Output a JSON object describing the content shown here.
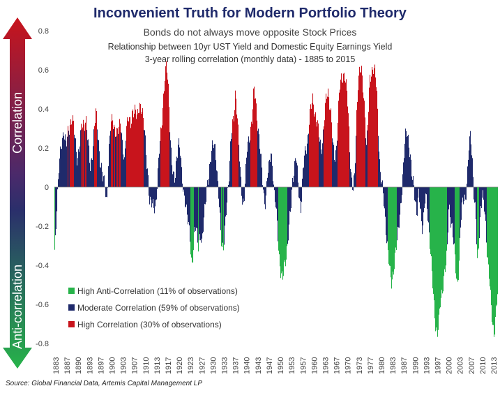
{
  "chart_data": {
    "type": "bar",
    "title": "Inconvenient Truth for Modern Portfolio Theory",
    "subtitle": "Bonds do not always move opposite Stock Prices",
    "description_line1": "Relationship between 10yr UST Yield and Domestic Equity Earnings Yield",
    "description_line2": "3-year rolling correlation (monthly data) - 1885 to 2015",
    "ylim": [
      -0.8,
      0.8
    ],
    "y_ticks": [
      "0.8",
      "0.6",
      "0.4",
      "0.2",
      "0",
      "-0.2",
      "-0.4",
      "-0.6",
      "-0.8"
    ],
    "y_tick_values": [
      0.8,
      0.6,
      0.4,
      0.2,
      0,
      -0.2,
      -0.4,
      -0.6,
      -0.8
    ],
    "x_ticks": [
      "1883",
      "1887",
      "1890",
      "1893",
      "1897",
      "1900",
      "1903",
      "1907",
      "1910",
      "1913",
      "1917",
      "1920",
      "1923",
      "1927",
      "1930",
      "1933",
      "1937",
      "1940",
      "1943",
      "1947",
      "1950",
      "1953",
      "1957",
      "1960",
      "1963",
      "1967",
      "1970",
      "1973",
      "1977",
      "1980",
      "1983",
      "1987",
      "1990",
      "1993",
      "1997",
      "2000",
      "2003",
      "2007",
      "2010",
      "2013"
    ],
    "xlim": [
      1883,
      2015
    ],
    "legend": [
      {
        "label": "High Anti-Correlation (11% of observations)",
        "color": "#27b34a"
      },
      {
        "label": "Moderate Correlation (59% of observations)",
        "color": "#1f2a6b"
      },
      {
        "label": "High Correlation (30% of observations)",
        "color": "#c8141c"
      }
    ],
    "legend_position": "bottom-left",
    "arrow_labels": {
      "up": "Correlation",
      "down": "Anti-correlation"
    },
    "colors": {
      "high_anti": "#27b34a",
      "moderate": "#1f2a6b",
      "high": "#c8141c"
    },
    "series_points": [
      [
        1883.0,
        -0.33
      ],
      [
        1883.6,
        -0.1
      ],
      [
        1884.3,
        0.1
      ],
      [
        1885.0,
        0.22
      ],
      [
        1885.7,
        0.3
      ],
      [
        1886.4,
        0.2
      ],
      [
        1887.0,
        0.28
      ],
      [
        1887.6,
        0.33
      ],
      [
        1888.2,
        0.36
      ],
      [
        1889.0,
        0.25
      ],
      [
        1889.7,
        0.15
      ],
      [
        1890.3,
        0.2
      ],
      [
        1891.0,
        0.3
      ],
      [
        1891.7,
        0.33
      ],
      [
        1892.3,
        0.35
      ],
      [
        1893.0,
        0.2
      ],
      [
        1893.6,
        0.1
      ],
      [
        1894.3,
        0.2
      ],
      [
        1894.8,
        0.3
      ],
      [
        1895.3,
        0.38
      ],
      [
        1896.0,
        0.25
      ],
      [
        1896.6,
        0.12
      ],
      [
        1897.3,
        0.04
      ],
      [
        1898.0,
        0.02
      ],
      [
        1898.5,
        -0.08
      ],
      [
        1899.0,
        0.12
      ],
      [
        1899.6,
        0.3
      ],
      [
        1900.2,
        0.37
      ],
      [
        1900.8,
        0.3
      ],
      [
        1901.4,
        0.25
      ],
      [
        1902.0,
        0.3
      ],
      [
        1902.6,
        0.36
      ],
      [
        1903.2,
        0.2
      ],
      [
        1903.8,
        0.1
      ],
      [
        1904.3,
        0.32
      ],
      [
        1905.0,
        0.38
      ],
      [
        1905.6,
        0.3
      ],
      [
        1906.3,
        0.38
      ],
      [
        1907.0,
        0.42
      ],
      [
        1907.6,
        0.35
      ],
      [
        1908.3,
        0.4
      ],
      [
        1909.0,
        0.42
      ],
      [
        1909.7,
        0.3
      ],
      [
        1910.3,
        0.12
      ],
      [
        1910.8,
        0.05
      ],
      [
        1911.2,
        -0.05
      ],
      [
        1911.8,
        -0.08
      ],
      [
        1912.4,
        -0.12
      ],
      [
        1913.0,
        -0.1
      ],
      [
        1913.6,
        0.05
      ],
      [
        1914.2,
        0.2
      ],
      [
        1914.8,
        0.3
      ],
      [
        1915.3,
        0.45
      ],
      [
        1915.8,
        0.58
      ],
      [
        1916.3,
        0.62
      ],
      [
        1916.8,
        0.5
      ],
      [
        1917.3,
        0.3
      ],
      [
        1917.8,
        0.15
      ],
      [
        1918.3,
        0.05
      ],
      [
        1918.8,
        0.02
      ],
      [
        1919.3,
        0.15
      ],
      [
        1919.8,
        0.25
      ],
      [
        1920.3,
        0.2
      ],
      [
        1920.8,
        0.05
      ],
      [
        1921.3,
        -0.03
      ],
      [
        1921.8,
        -0.05
      ],
      [
        1922.3,
        -0.12
      ],
      [
        1922.8,
        -0.2
      ],
      [
        1923.3,
        -0.28
      ],
      [
        1923.8,
        -0.4
      ],
      [
        1924.3,
        -0.3
      ],
      [
        1924.8,
        -0.2
      ],
      [
        1925.3,
        -0.25
      ],
      [
        1925.8,
        -0.3
      ],
      [
        1926.3,
        -0.22
      ],
      [
        1926.8,
        -0.3
      ],
      [
        1927.3,
        -0.2
      ],
      [
        1927.8,
        -0.08
      ],
      [
        1928.3,
        0.02
      ],
      [
        1928.8,
        0.05
      ],
      [
        1929.3,
        0.1
      ],
      [
        1929.8,
        0.2
      ],
      [
        1930.3,
        0.25
      ],
      [
        1930.8,
        0.2
      ],
      [
        1931.3,
        0.05
      ],
      [
        1931.8,
        -0.05
      ],
      [
        1932.3,
        -0.18
      ],
      [
        1932.8,
        -0.3
      ],
      [
        1933.3,
        -0.32
      ],
      [
        1933.8,
        -0.2
      ],
      [
        1934.3,
        -0.05
      ],
      [
        1934.8,
        0.05
      ],
      [
        1935.3,
        0.2
      ],
      [
        1935.8,
        0.3
      ],
      [
        1936.3,
        0.35
      ],
      [
        1936.8,
        0.5
      ],
      [
        1937.3,
        0.38
      ],
      [
        1937.8,
        0.2
      ],
      [
        1938.3,
        0.05
      ],
      [
        1938.8,
        -0.05
      ],
      [
        1939.3,
        -0.08
      ],
      [
        1939.8,
        0.05
      ],
      [
        1940.3,
        0.2
      ],
      [
        1940.8,
        0.25
      ],
      [
        1941.3,
        0.3
      ],
      [
        1941.8,
        0.35
      ],
      [
        1942.3,
        0.5
      ],
      [
        1942.8,
        0.45
      ],
      [
        1943.3,
        0.35
      ],
      [
        1943.8,
        0.25
      ],
      [
        1944.3,
        0.15
      ],
      [
        1944.8,
        0.05
      ],
      [
        1945.3,
        -0.05
      ],
      [
        1945.8,
        -0.08
      ],
      [
        1946.3,
        0.05
      ],
      [
        1946.8,
        0.1
      ],
      [
        1947.3,
        0.2
      ],
      [
        1947.8,
        0.12
      ],
      [
        1948.3,
        -0.05
      ],
      [
        1948.8,
        -0.1
      ],
      [
        1949.3,
        -0.2
      ],
      [
        1949.8,
        -0.35
      ],
      [
        1950.3,
        -0.45
      ],
      [
        1950.8,
        -0.49
      ],
      [
        1951.3,
        -0.4
      ],
      [
        1951.8,
        -0.35
      ],
      [
        1952.3,
        -0.3
      ],
      [
        1952.8,
        -0.2
      ],
      [
        1953.3,
        -0.1
      ],
      [
        1953.8,
        0.05
      ],
      [
        1954.3,
        0.1
      ],
      [
        1954.8,
        0.15
      ],
      [
        1955.3,
        0.05
      ],
      [
        1955.8,
        -0.05
      ],
      [
        1956.3,
        -0.1
      ],
      [
        1956.8,
        0.05
      ],
      [
        1957.3,
        0.15
      ],
      [
        1957.8,
        0.2
      ],
      [
        1958.3,
        0.25
      ],
      [
        1958.8,
        0.35
      ],
      [
        1959.3,
        0.4
      ],
      [
        1959.8,
        0.45
      ],
      [
        1960.3,
        0.4
      ],
      [
        1960.8,
        0.35
      ],
      [
        1961.3,
        0.3
      ],
      [
        1961.8,
        0.25
      ],
      [
        1962.3,
        0.2
      ],
      [
        1962.8,
        0.25
      ],
      [
        1963.3,
        0.35
      ],
      [
        1963.8,
        0.45
      ],
      [
        1964.3,
        0.5
      ],
      [
        1964.8,
        0.44
      ],
      [
        1965.3,
        0.35
      ],
      [
        1965.8,
        0.2
      ],
      [
        1966.3,
        0.15
      ],
      [
        1966.8,
        0.2
      ],
      [
        1967.3,
        0.35
      ],
      [
        1967.8,
        0.5
      ],
      [
        1968.3,
        0.55
      ],
      [
        1968.8,
        0.58
      ],
      [
        1969.3,
        0.58
      ],
      [
        1969.8,
        0.5
      ],
      [
        1970.3,
        0.4
      ],
      [
        1970.8,
        0.2
      ],
      [
        1971.3,
        0.05
      ],
      [
        1971.8,
        -0.02
      ],
      [
        1972.3,
        0.05
      ],
      [
        1972.8,
        0.35
      ],
      [
        1973.3,
        0.55
      ],
      [
        1973.8,
        0.6
      ],
      [
        1974.3,
        0.58
      ],
      [
        1974.8,
        0.5
      ],
      [
        1975.3,
        0.4
      ],
      [
        1975.8,
        0.2
      ],
      [
        1976.3,
        0.35
      ],
      [
        1976.8,
        0.55
      ],
      [
        1977.3,
        0.6
      ],
      [
        1977.8,
        0.62
      ],
      [
        1978.3,
        0.58
      ],
      [
        1978.8,
        0.5
      ],
      [
        1979.3,
        0.3
      ],
      [
        1979.8,
        0.1
      ],
      [
        1980.3,
        0.02
      ],
      [
        1980.8,
        -0.05
      ],
      [
        1981.3,
        -0.15
      ],
      [
        1981.8,
        -0.25
      ],
      [
        1982.3,
        -0.35
      ],
      [
        1982.8,
        -0.45
      ],
      [
        1983.3,
        -0.5
      ],
      [
        1983.8,
        -0.42
      ],
      [
        1984.3,
        -0.35
      ],
      [
        1984.8,
        -0.3
      ],
      [
        1985.3,
        -0.22
      ],
      [
        1985.8,
        -0.12
      ],
      [
        1986.3,
        -0.02
      ],
      [
        1986.8,
        0.1
      ],
      [
        1987.3,
        0.25
      ],
      [
        1987.8,
        0.3
      ],
      [
        1988.3,
        0.25
      ],
      [
        1988.8,
        0.15
      ],
      [
        1989.3,
        0.05
      ],
      [
        1989.8,
        0.02
      ],
      [
        1990.3,
        -0.05
      ],
      [
        1990.8,
        -0.15
      ],
      [
        1991.3,
        -0.05
      ],
      [
        1991.8,
        -0.1
      ],
      [
        1992.3,
        -0.2
      ],
      [
        1992.8,
        -0.15
      ],
      [
        1993.3,
        -0.05
      ],
      [
        1993.8,
        -0.1
      ],
      [
        1994.3,
        -0.2
      ],
      [
        1994.8,
        -0.3
      ],
      [
        1995.3,
        -0.45
      ],
      [
        1995.8,
        -0.6
      ],
      [
        1996.3,
        -0.7
      ],
      [
        1996.8,
        -0.74
      ],
      [
        1997.3,
        -0.7
      ],
      [
        1997.8,
        -0.6
      ],
      [
        1998.3,
        -0.55
      ],
      [
        1998.8,
        -0.45
      ],
      [
        1999.3,
        -0.4
      ],
      [
        1999.8,
        -0.35
      ],
      [
        2000.3,
        -0.1
      ],
      [
        2000.8,
        -0.15
      ],
      [
        2001.3,
        -0.2
      ],
      [
        2001.8,
        -0.3
      ],
      [
        2002.3,
        -0.42
      ],
      [
        2002.8,
        -0.5
      ],
      [
        2003.3,
        -0.4
      ],
      [
        2003.8,
        -0.2
      ],
      [
        2004.3,
        -0.1
      ],
      [
        2004.8,
        -0.05
      ],
      [
        2005.3,
        -0.05
      ],
      [
        2005.8,
        0.05
      ],
      [
        2006.3,
        0.2
      ],
      [
        2006.8,
        0.27
      ],
      [
        2007.3,
        0.15
      ],
      [
        2007.8,
        -0.05
      ],
      [
        2008.3,
        -0.15
      ],
      [
        2008.8,
        -0.4
      ],
      [
        2009.3,
        -0.25
      ],
      [
        2009.8,
        -0.1
      ],
      [
        2010.3,
        -0.05
      ],
      [
        2010.8,
        -0.1
      ],
      [
        2011.3,
        -0.2
      ],
      [
        2011.8,
        -0.35
      ],
      [
        2012.3,
        -0.45
      ],
      [
        2012.8,
        -0.6
      ],
      [
        2013.3,
        -0.7
      ],
      [
        2013.8,
        -0.74
      ],
      [
        2014.3,
        -0.65
      ],
      [
        2014.8,
        -0.55
      ],
      [
        2015.0,
        -0.42
      ]
    ]
  },
  "source": "Source: Global Financial Data, Artemis Capital Management LP"
}
